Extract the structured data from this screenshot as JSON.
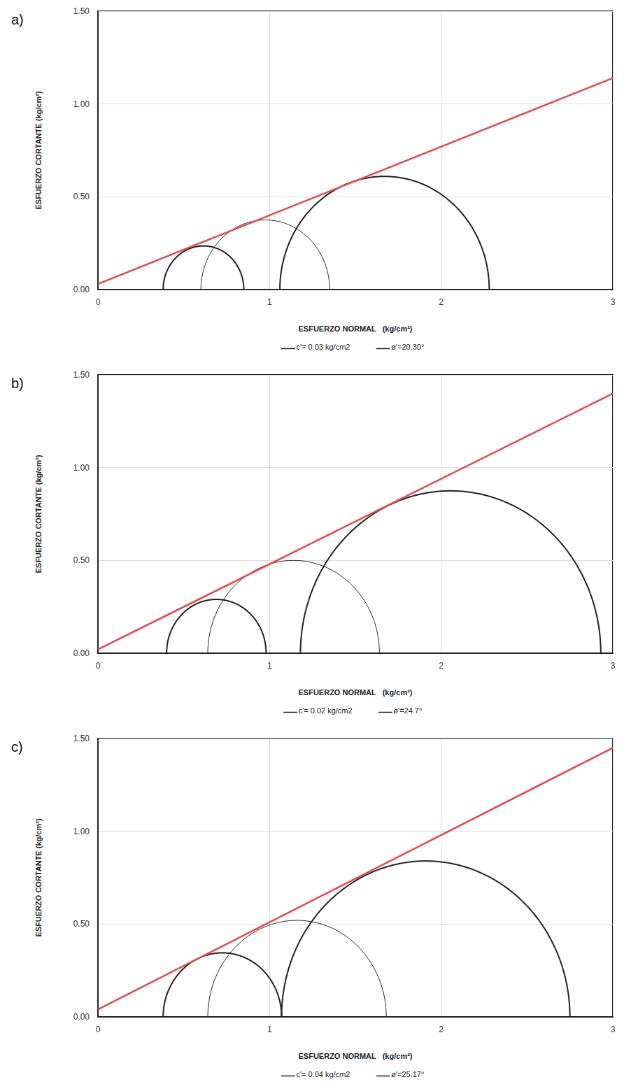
{
  "chart_data": [
    {
      "type": "mohr",
      "panel": "a)",
      "x_label": "ESFUERZO NORMAL   (kg/cm²)",
      "y_label": "ESFUERZO CORTANTE (kg/cm²)",
      "xlim": [
        0,
        3
      ],
      "xticks": [
        0,
        1,
        2,
        3
      ],
      "ylim": [
        0,
        1.5
      ],
      "yticks": [
        {
          "value": 0,
          "label": "0.00"
        },
        {
          "value": 0.5,
          "label": "0.50"
        },
        {
          "value": 1.0,
          "label": "1.00"
        },
        {
          "value": 1.5,
          "label": "1.50"
        }
      ],
      "grid": true,
      "color": "#222222",
      "circles": [
        {
          "sigma3": 0.38,
          "sigma1": 0.85
        },
        {
          "sigma3": 0.6,
          "sigma1": 1.35
        },
        {
          "sigma3": 1.06,
          "sigma1": 2.28
        }
      ],
      "envelope": {
        "c": 0.03,
        "phi": 20.3,
        "color": "#e8474c",
        "labels": [
          "c'= 0.03 kg/cm2",
          "ø'=20.30°"
        ]
      }
    },
    {
      "type": "mohr",
      "panel": "b)",
      "x_label": "ESFUERZO NORMAL   (kg/cm²)",
      "y_label": "ESFUERZO CORTANTE (kg/cm²)",
      "xlim": [
        0,
        3
      ],
      "xticks": [
        0,
        1,
        2,
        3
      ],
      "ylim": [
        0,
        1.5
      ],
      "yticks": [
        {
          "value": 0,
          "label": "0.00"
        },
        {
          "value": 0.5,
          "label": "0.50"
        },
        {
          "value": 1.0,
          "label": "1.00"
        },
        {
          "value": 1.5,
          "label": "1.50"
        }
      ],
      "grid": true,
      "color": "#222222",
      "circles": [
        {
          "sigma3": 0.4,
          "sigma1": 0.98
        },
        {
          "sigma3": 0.64,
          "sigma1": 1.64
        },
        {
          "sigma3": 1.18,
          "sigma1": 2.93
        }
      ],
      "envelope": {
        "c": 0.02,
        "phi": 24.7,
        "color": "#e8474c",
        "labels": [
          "c'= 0.02 kg/cm2",
          "ø'=24.7°"
        ]
      }
    },
    {
      "type": "mohr",
      "panel": "c)",
      "x_label": "ESFUERZO NORMAL   (kg/cm²)",
      "y_label": "ESFUERZO CORTANTE (kg/cm²)",
      "xlim": [
        0,
        3
      ],
      "xticks": [
        0,
        1,
        2,
        3
      ],
      "ylim": [
        0,
        1.5
      ],
      "yticks": [
        {
          "value": 0,
          "label": "0.00"
        },
        {
          "value": 0.5,
          "label": "0.50"
        },
        {
          "value": 1.0,
          "label": "1.00"
        },
        {
          "value": 1.5,
          "label": "1.50"
        }
      ],
      "grid": true,
      "color": "#222222",
      "circles": [
        {
          "sigma3": 0.38,
          "sigma1": 1.07
        },
        {
          "sigma3": 0.64,
          "sigma1": 1.68
        },
        {
          "sigma3": 1.07,
          "sigma1": 2.75
        }
      ],
      "envelope": {
        "c": 0.04,
        "phi": 25.17,
        "color": "#e8474c",
        "labels": [
          "c'= 0.04 kg/cm2",
          "ø'=25.17°"
        ]
      }
    }
  ]
}
